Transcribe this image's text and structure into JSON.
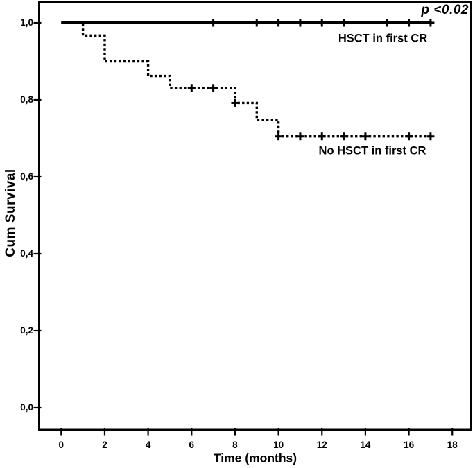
{
  "chart_data": {
    "type": "line",
    "subtype": "kaplan-meier-step",
    "title": "",
    "xlabel": "Time (months)",
    "ylabel": "Cum Survival",
    "annotation": "p <0.02",
    "grid": false,
    "legend_position": "inline-labels",
    "xlim": [
      -1,
      18.9
    ],
    "ylim": [
      -0.056,
      1.056
    ],
    "x_ticks": [
      0,
      2,
      4,
      6,
      8,
      10,
      12,
      14,
      16,
      18
    ],
    "x_tick_labels": [
      "0",
      "2",
      "4",
      "6",
      "8",
      "10",
      "12",
      "14",
      "16",
      "18"
    ],
    "y_ticks": [
      0.0,
      0.2,
      0.4,
      0.6,
      0.8,
      1.0
    ],
    "y_tick_labels": [
      "0,0",
      "0,2",
      "0,4",
      "0,6",
      "0,8",
      "1,0"
    ],
    "line_color": "#000000",
    "series": [
      {
        "name": "HSCT in first CR",
        "label_text": "HSCT in first CR",
        "line_style": "solid",
        "steps": [
          [
            0,
            1.0
          ],
          [
            17.05,
            1.0
          ]
        ],
        "censor_marks": [
          [
            7,
            1.0
          ],
          [
            9,
            1.0
          ],
          [
            10,
            1.0
          ],
          [
            11,
            1.0
          ],
          [
            12,
            1.0
          ],
          [
            13,
            1.0
          ],
          [
            15,
            1.0
          ],
          [
            16,
            1.0
          ],
          [
            17,
            1.0
          ]
        ]
      },
      {
        "name": "No HSCT in first CR",
        "label_text": "No HSCT in first CR",
        "line_style": "dotted",
        "steps": [
          [
            0,
            1.0
          ],
          [
            1,
            1.0
          ],
          [
            1,
            0.967
          ],
          [
            2,
            0.967
          ],
          [
            2,
            0.9
          ],
          [
            4,
            0.9
          ],
          [
            4,
            0.862
          ],
          [
            5,
            0.862
          ],
          [
            5,
            0.831
          ],
          [
            8,
            0.831
          ],
          [
            8,
            0.792
          ],
          [
            9,
            0.792
          ],
          [
            9,
            0.748
          ],
          [
            10,
            0.748
          ],
          [
            10,
            0.705
          ],
          [
            17,
            0.705
          ]
        ],
        "censor_marks": [
          [
            6,
            0.831
          ],
          [
            7,
            0.831
          ],
          [
            8,
            0.792
          ],
          [
            10,
            0.705
          ],
          [
            11,
            0.705
          ],
          [
            12,
            0.705
          ],
          [
            13,
            0.705
          ],
          [
            14,
            0.705
          ],
          [
            16,
            0.705
          ],
          [
            17,
            0.705
          ]
        ]
      }
    ]
  }
}
